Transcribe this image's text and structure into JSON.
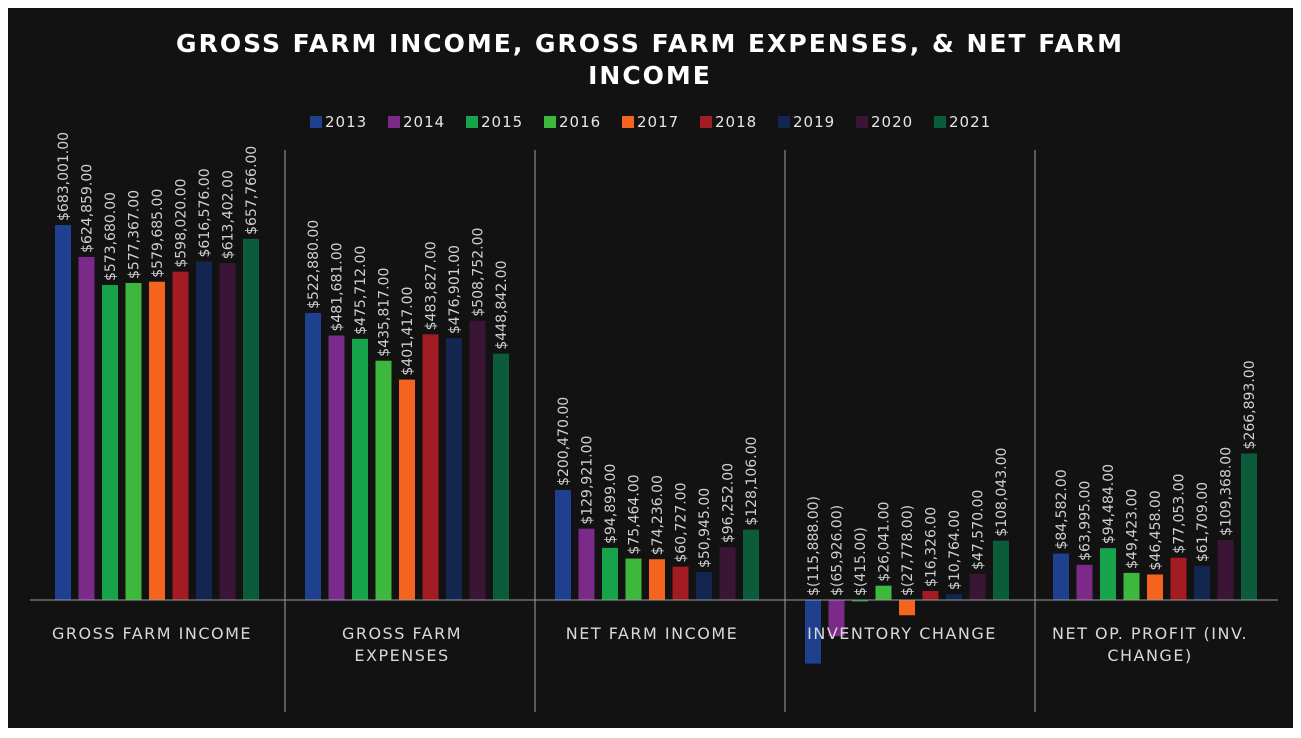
{
  "chart_data": {
    "type": "bar",
    "title": "GROSS FARM INCOME, GROSS FARM EXPENSES, & NET FARM INCOME",
    "categories": [
      "GROSS FARM INCOME",
      "GROSS FARM EXPENSES",
      "NET FARM INCOME",
      "INVENTORY CHANGE",
      "NET OP. PROFIT (INV. CHANGE)"
    ],
    "series": [
      {
        "name": "2013",
        "color": "#1f3f8f",
        "values": [
          683001,
          522880,
          200470,
          -115888,
          84582
        ],
        "labels": [
          "$683,001.00",
          "$522,880.00",
          "$200,470.00",
          "$(115,888.00)",
          "$84,582.00"
        ]
      },
      {
        "name": "2014",
        "color": "#7b2a8a",
        "values": [
          624859,
          481681,
          129921,
          -65926,
          63995
        ],
        "labels": [
          "$624,859.00",
          "$481,681.00",
          "$129,921.00",
          "$(65,926.00)",
          "$63,995.00"
        ]
      },
      {
        "name": "2015",
        "color": "#17a34a",
        "values": [
          573680,
          475712,
          94899,
          -415,
          94484
        ],
        "labels": [
          "$573,680.00",
          "$475,712.00",
          "$94,899.00",
          "$(415.00)",
          "$94,484.00"
        ]
      },
      {
        "name": "2016",
        "color": "#3cb83c",
        "values": [
          577367,
          435817,
          75464,
          26041,
          49423
        ],
        "labels": [
          "$577,367.00",
          "$435,817.00",
          "$75,464.00",
          "$26,041.00",
          "$49,423.00"
        ]
      },
      {
        "name": "2017",
        "color": "#f5641e",
        "values": [
          579685,
          401417,
          74236,
          -27778,
          46458
        ],
        "labels": [
          "$579,685.00",
          "$401,417.00",
          "$74,236.00",
          "$(27,778.00)",
          "$46,458.00"
        ]
      },
      {
        "name": "2018",
        "color": "#a31c24",
        "values": [
          598020,
          483827,
          60727,
          16326,
          77053
        ],
        "labels": [
          "$598,020.00",
          "$483,827.00",
          "$60,727.00",
          "$16,326.00",
          "$77,053.00"
        ]
      },
      {
        "name": "2019",
        "color": "#12264f",
        "values": [
          616576,
          476901,
          50945,
          10764,
          61709
        ],
        "labels": [
          "$616,576.00",
          "$476,901.00",
          "$50,945.00",
          "$10,764.00",
          "$61,709.00"
        ]
      },
      {
        "name": "2020",
        "color": "#3a1535",
        "values": [
          613402,
          508752,
          96252,
          47570,
          109368
        ],
        "labels": [
          "$613,402.00",
          "$508,752.00",
          "$96,252.00",
          "$47,570.00",
          "$109,368.00"
        ]
      },
      {
        "name": "2021",
        "color": "#0a5c3a",
        "values": [
          657766,
          448842,
          128106,
          108043,
          266893
        ],
        "labels": [
          "$657,766.00",
          "$448,842.00",
          "$128,106.00",
          "$108,043.00",
          "$266,893.00"
        ]
      }
    ],
    "legend_position": "top",
    "grid": false
  }
}
